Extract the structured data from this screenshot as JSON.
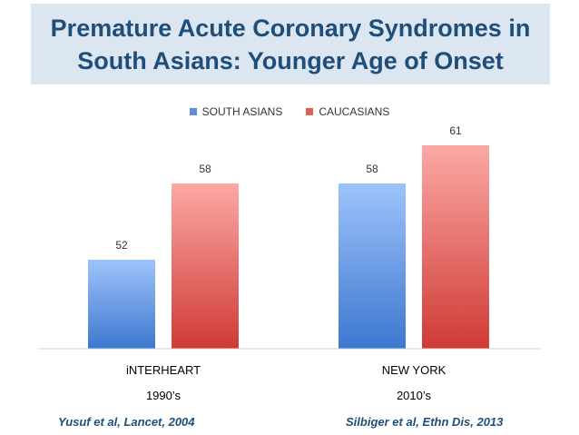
{
  "header": {
    "title_line1": "Premature Acute Coronary Syndromes in",
    "title_line2": "South Asians: Younger Age of Onset"
  },
  "legend": {
    "south_asians": "SOUTH ASIANS",
    "caucasians": "CAUCASIANS"
  },
  "colors": {
    "south_asians_top": "#9ec3fb",
    "south_asians_bottom": "#3d78cf",
    "caucasians_top": "#fba9a5",
    "caucasians_bottom": "#d03a36",
    "title_bg": "#dce6f1",
    "title_text": "#1f4e79"
  },
  "chart_data": {
    "type": "bar",
    "categories": [
      "iNTERHEART",
      "NEW YORK"
    ],
    "subcategories": [
      "1990’s",
      "2010’s"
    ],
    "series": [
      {
        "name": "SOUTH ASIANS",
        "values": [
          52,
          58
        ]
      },
      {
        "name": "CAUCASIANS",
        "values": [
          58,
          61
        ]
      }
    ],
    "ylim": [
      45,
      63
    ],
    "title": "Premature Acute Coronary Syndromes in South Asians: Younger Age of Onset",
    "xlabel": "",
    "ylabel": "",
    "grid": false,
    "legend_position": "top"
  },
  "citations": {
    "left": "Yusuf et al, Lancet, 2004",
    "right": "Silbiger et al, Ethn Dis, 2013"
  }
}
